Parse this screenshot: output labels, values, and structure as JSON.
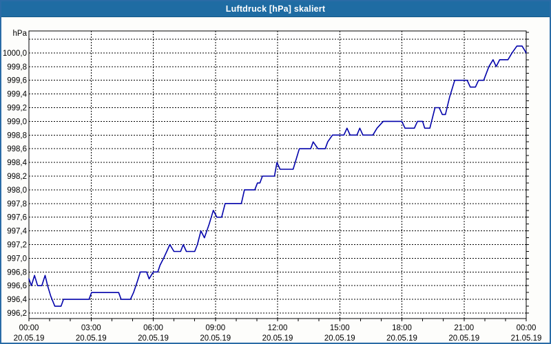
{
  "window": {
    "title": "Luftdruck [hPa] skaliert"
  },
  "colors": {
    "titlebar_bg": "#1f6ca3",
    "titlebar_text": "#ffffff",
    "window_border": "#2a6ba6",
    "window_bg": "#fdfdfb",
    "plot_bg": "#ffffff",
    "grid": "#000000",
    "frame": "#000000",
    "axis_text": "#000000",
    "series_line": "#0000aa"
  },
  "chart_data": {
    "type": "line",
    "title": "Luftdruck [hPa] skaliert",
    "legend": "none",
    "grid": "dashed",
    "y_axis": {
      "unit": "hPa",
      "min": 996.12,
      "max": 1000.32,
      "grid_min": 996.2,
      "grid_max": 1000.2,
      "grid_step": 0.2,
      "minor_tick_step": 0.1,
      "tick_labels": [
        {
          "value": 996.2,
          "label": "996,2"
        },
        {
          "value": 996.4,
          "label": "996,4"
        },
        {
          "value": 996.6,
          "label": "996,6"
        },
        {
          "value": 996.8,
          "label": "996,8"
        },
        {
          "value": 997.0,
          "label": "997,0"
        },
        {
          "value": 997.2,
          "label": "997,2"
        },
        {
          "value": 997.4,
          "label": "997,4"
        },
        {
          "value": 997.6,
          "label": "997,6"
        },
        {
          "value": 997.8,
          "label": "997,8"
        },
        {
          "value": 998.0,
          "label": "998,0"
        },
        {
          "value": 998.2,
          "label": "998,2"
        },
        {
          "value": 998.4,
          "label": "998,4"
        },
        {
          "value": 998.6,
          "label": "998,6"
        },
        {
          "value": 998.8,
          "label": "998,8"
        },
        {
          "value": 999.0,
          "label": "999,0"
        },
        {
          "value": 999.2,
          "label": "999,2"
        },
        {
          "value": 999.4,
          "label": "999,4"
        },
        {
          "value": 999.6,
          "label": "999,6"
        },
        {
          "value": 999.8,
          "label": "999,8"
        },
        {
          "value": 1000.0,
          "label": "1000,0"
        }
      ]
    },
    "x_axis": {
      "unit": "hours",
      "range_hours": [
        0,
        24
      ],
      "major_step_hours": 3,
      "minor_tick_step_hours": 1,
      "ticks": [
        {
          "hour": 0,
          "time": "00:00",
          "date": "20.05.19"
        },
        {
          "hour": 3,
          "time": "03:00",
          "date": "20.05.19"
        },
        {
          "hour": 6,
          "time": "06:00",
          "date": "20.05.19"
        },
        {
          "hour": 9,
          "time": "09:00",
          "date": "20.05.19"
        },
        {
          "hour": 12,
          "time": "12:00",
          "date": "20.05.19"
        },
        {
          "hour": 15,
          "time": "15:00",
          "date": "20.05.19"
        },
        {
          "hour": 18,
          "time": "18:00",
          "date": "20.05.19"
        },
        {
          "hour": 21,
          "time": "21:00",
          "date": "20.05.19"
        },
        {
          "hour": 24,
          "time": "00:00",
          "date": "21.05.19"
        }
      ]
    },
    "series": [
      {
        "name": "Luftdruck",
        "unit": "hPa",
        "points": [
          [
            0,
            996.7
          ],
          [
            0.12,
            996.6
          ],
          [
            0.27,
            996.75
          ],
          [
            0.42,
            996.6
          ],
          [
            0.62,
            996.6
          ],
          [
            0.78,
            996.75
          ],
          [
            0.9,
            996.6
          ],
          [
            1.05,
            996.45
          ],
          [
            1.25,
            996.3
          ],
          [
            1.55,
            996.3
          ],
          [
            1.67,
            996.4
          ],
          [
            2.9,
            996.4
          ],
          [
            3.02,
            996.5
          ],
          [
            4.33,
            996.5
          ],
          [
            4.45,
            996.4
          ],
          [
            4.9,
            996.4
          ],
          [
            5.05,
            996.5
          ],
          [
            5.22,
            996.65
          ],
          [
            5.38,
            996.8
          ],
          [
            5.68,
            996.8
          ],
          [
            5.8,
            996.7
          ],
          [
            6.0,
            996.8
          ],
          [
            6.22,
            996.8
          ],
          [
            6.33,
            996.9
          ],
          [
            6.5,
            997.0
          ],
          [
            6.65,
            997.1
          ],
          [
            6.8,
            997.2
          ],
          [
            7.0,
            997.1
          ],
          [
            7.32,
            997.1
          ],
          [
            7.45,
            997.2
          ],
          [
            7.6,
            997.1
          ],
          [
            8.0,
            997.1
          ],
          [
            8.13,
            997.2
          ],
          [
            8.3,
            997.4
          ],
          [
            8.47,
            997.3
          ],
          [
            8.7,
            997.5
          ],
          [
            8.9,
            997.7
          ],
          [
            9.07,
            997.6
          ],
          [
            9.3,
            997.6
          ],
          [
            9.47,
            997.8
          ],
          [
            10.25,
            997.8
          ],
          [
            10.4,
            998.0
          ],
          [
            10.9,
            998.0
          ],
          [
            11.03,
            998.1
          ],
          [
            11.15,
            998.1
          ],
          [
            11.27,
            998.2
          ],
          [
            11.85,
            998.2
          ],
          [
            11.97,
            998.4
          ],
          [
            12.12,
            998.3
          ],
          [
            12.75,
            998.3
          ],
          [
            12.9,
            998.45
          ],
          [
            13.05,
            998.6
          ],
          [
            13.6,
            998.6
          ],
          [
            13.72,
            998.7
          ],
          [
            13.95,
            998.6
          ],
          [
            14.3,
            998.6
          ],
          [
            14.42,
            998.7
          ],
          [
            14.65,
            998.8
          ],
          [
            15.2,
            998.8
          ],
          [
            15.35,
            998.9
          ],
          [
            15.5,
            998.8
          ],
          [
            15.83,
            998.8
          ],
          [
            15.97,
            998.9
          ],
          [
            16.12,
            998.8
          ],
          [
            16.6,
            998.8
          ],
          [
            16.8,
            998.9
          ],
          [
            17.1,
            999.0
          ],
          [
            18.0,
            999.0
          ],
          [
            18.15,
            998.9
          ],
          [
            18.6,
            998.9
          ],
          [
            18.75,
            999.0
          ],
          [
            19.0,
            999.0
          ],
          [
            19.1,
            998.9
          ],
          [
            19.35,
            998.9
          ],
          [
            19.6,
            999.2
          ],
          [
            19.8,
            999.2
          ],
          [
            19.95,
            999.1
          ],
          [
            20.1,
            999.1
          ],
          [
            20.3,
            999.35
          ],
          [
            20.55,
            999.6
          ],
          [
            21.15,
            999.6
          ],
          [
            21.3,
            999.5
          ],
          [
            21.55,
            999.5
          ],
          [
            21.7,
            999.6
          ],
          [
            21.95,
            999.6
          ],
          [
            22.2,
            999.8
          ],
          [
            22.4,
            999.9
          ],
          [
            22.55,
            999.8
          ],
          [
            22.72,
            999.9
          ],
          [
            23.12,
            999.9
          ],
          [
            23.32,
            1000.0
          ],
          [
            23.55,
            1000.1
          ],
          [
            23.8,
            1000.1
          ],
          [
            24,
            1000.0
          ]
        ]
      }
    ]
  }
}
